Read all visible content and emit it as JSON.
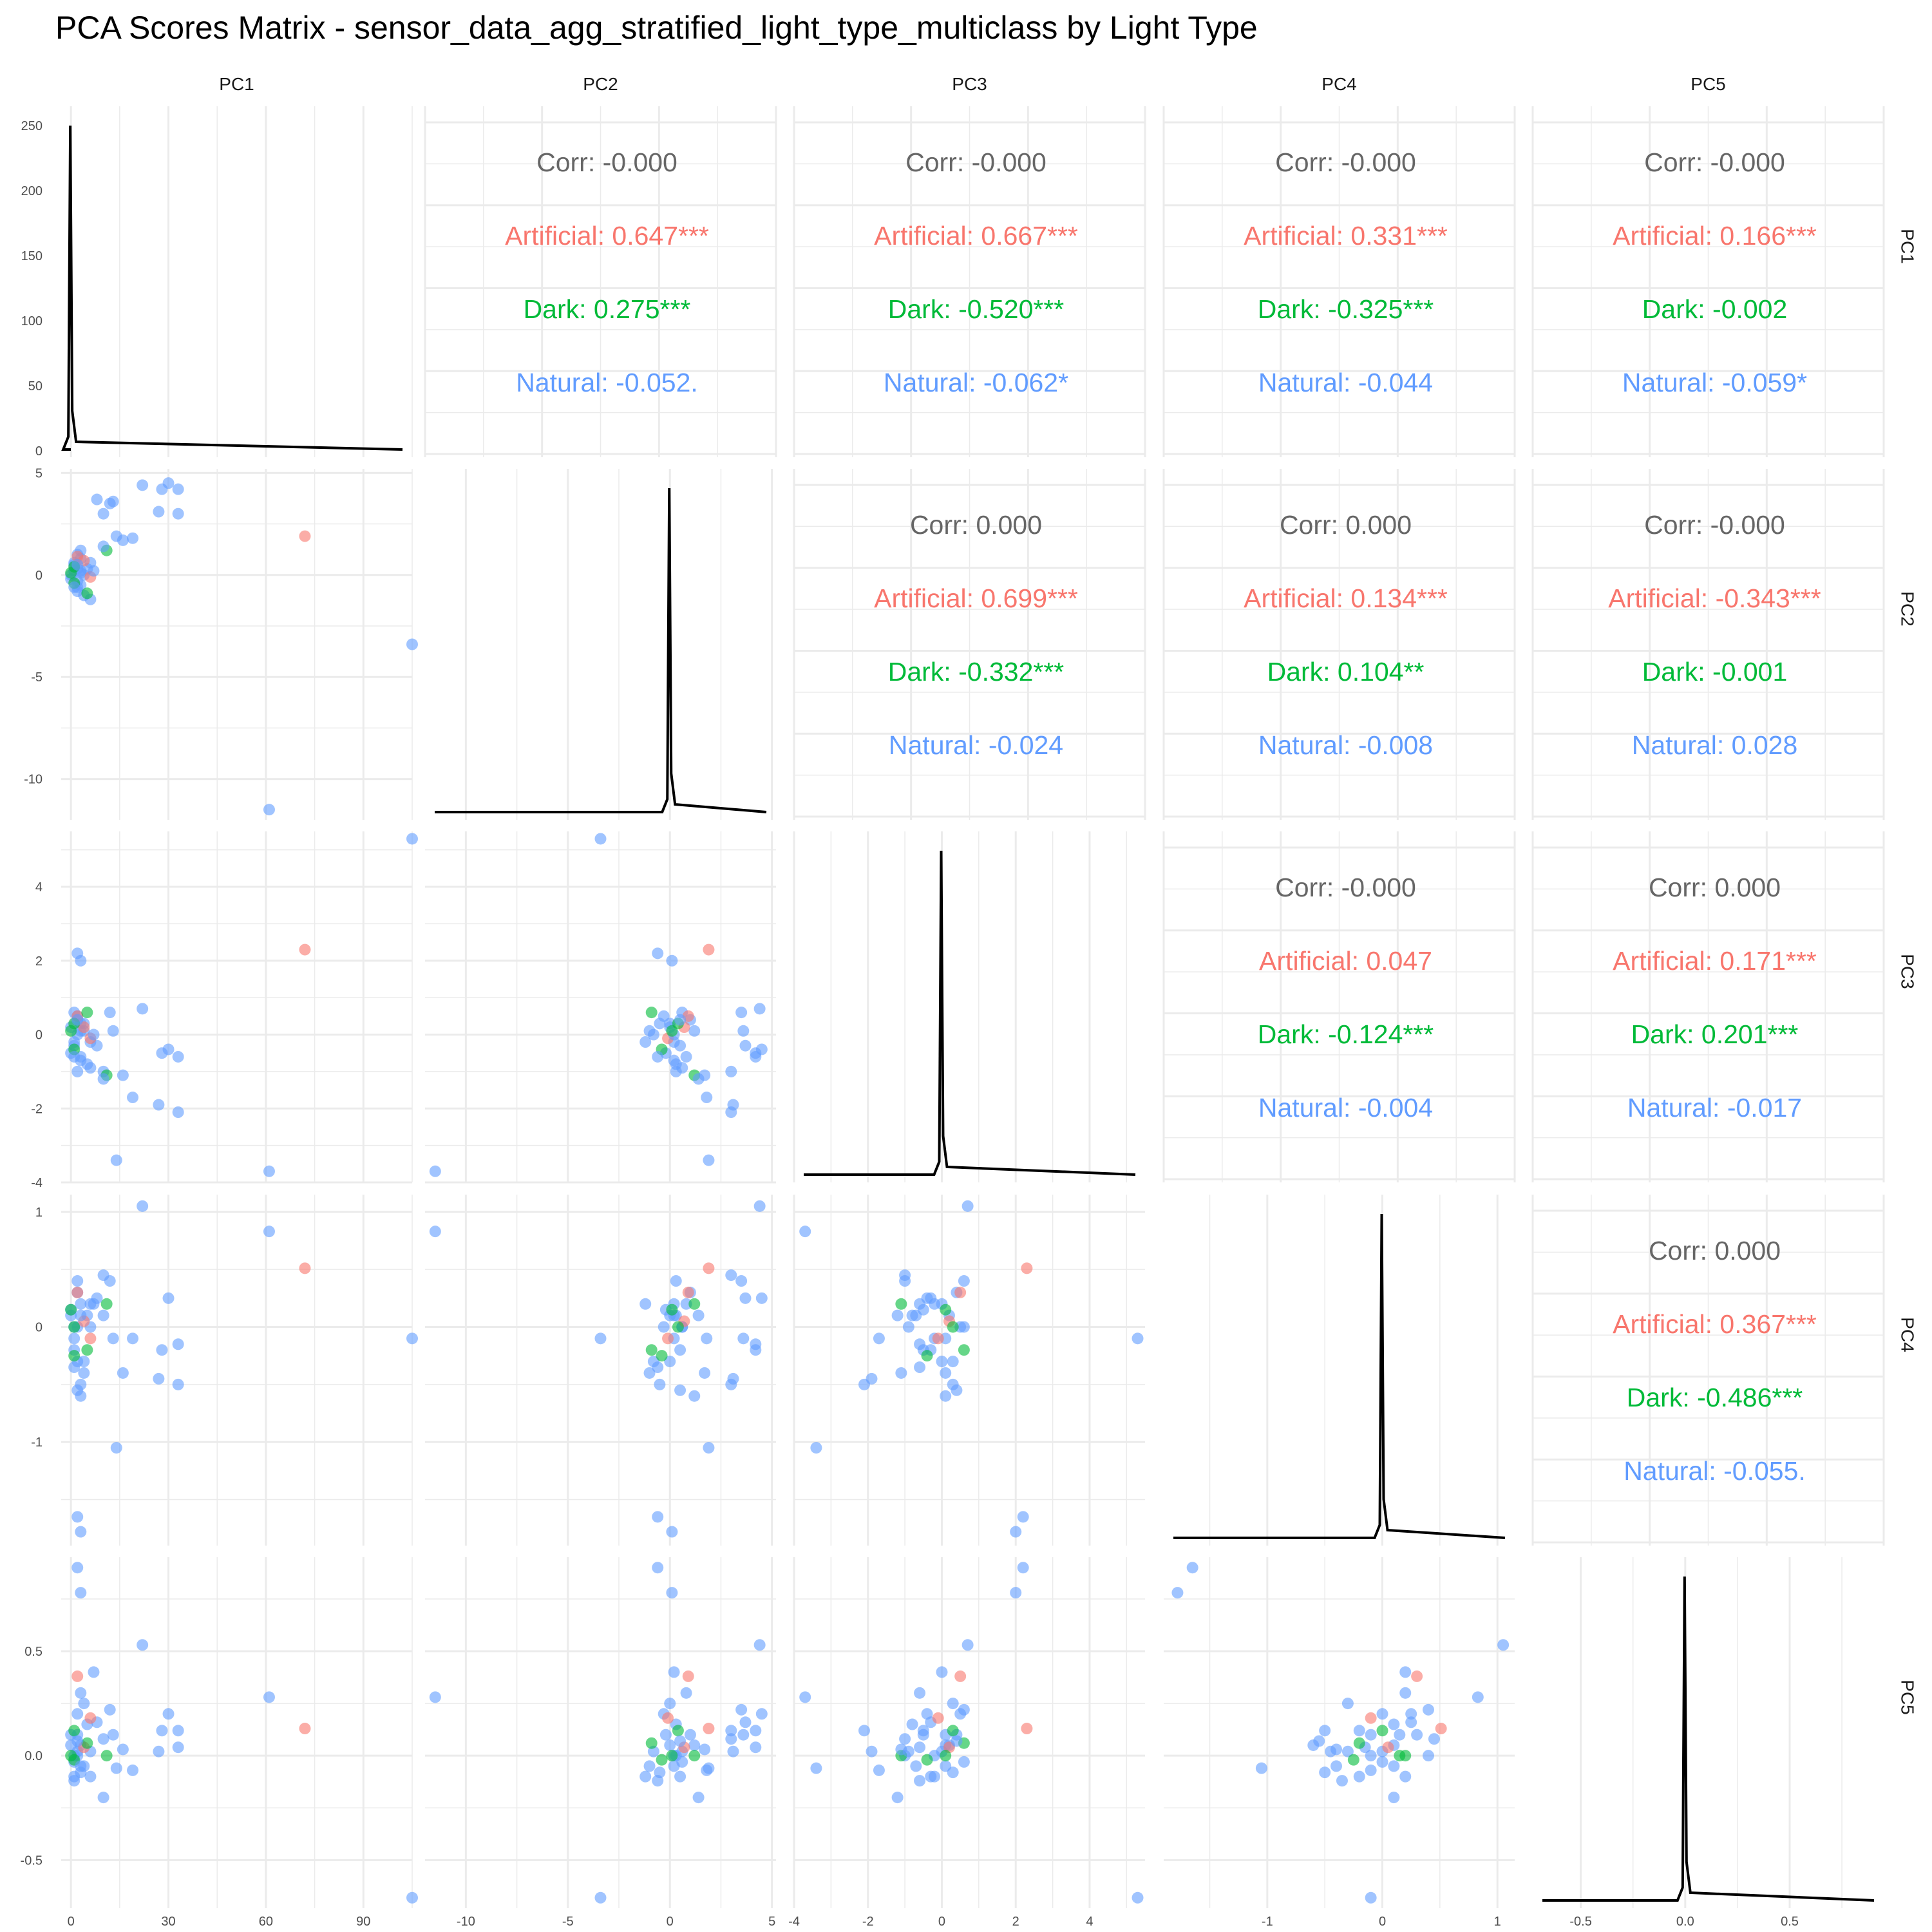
{
  "title": "PCA Scores Matrix - sensor_data_agg_stratified_light_type_multiclass by Light Type",
  "colors": {
    "Artificial": "#F8766D",
    "Dark": "#00BA38",
    "Natural": "#619CFF",
    "corr": "#666666",
    "density": "#000000",
    "grid": "#EBEBEB"
  },
  "chart_data": {
    "type": "scatter",
    "variables": [
      "PC1",
      "PC2",
      "PC3",
      "PC4",
      "PC5"
    ],
    "groups": [
      "Artificial",
      "Dark",
      "Natural"
    ],
    "diagonal": "density",
    "density_ylim": [
      0,
      250
    ],
    "density_yticks": [
      "0",
      "50",
      "100",
      "150",
      "200",
      "250"
    ],
    "axes": {
      "PC1": {
        "lim": [
          -3,
          105
        ],
        "ticks": [
          0,
          30,
          60,
          90
        ],
        "tick_labels": [
          "0",
          "30",
          "60",
          "90"
        ]
      },
      "PC2": {
        "lim": [
          -12,
          5.2
        ],
        "ticks": [
          -10,
          -5,
          0,
          5
        ],
        "tick_labels": [
          "-10",
          "-5",
          "0",
          "5"
        ]
      },
      "PC3": {
        "lim": [
          -4,
          5.5
        ],
        "ticks": [
          -4,
          -2,
          0,
          2,
          4
        ],
        "tick_labels": [
          "-4",
          "-2",
          "0",
          "2",
          "4"
        ]
      },
      "PC4": {
        "lim": [
          -1.9,
          1.15
        ],
        "ticks": [
          -1,
          0,
          1
        ],
        "tick_labels": [
          "-1",
          "0",
          "1"
        ]
      },
      "PC5": {
        "lim": [
          -0.73,
          0.95
        ],
        "ticks": [
          -0.5,
          0,
          0.5
        ],
        "tick_labels": [
          "-0.5",
          "0.0",
          "0.5"
        ]
      }
    },
    "points": {
      "PC1": [
        0,
        1,
        2,
        3,
        4,
        2,
        1,
        3,
        5,
        2,
        1,
        0,
        3,
        6,
        4,
        2,
        8,
        10,
        12,
        13,
        11,
        22,
        30,
        33,
        28,
        27,
        33,
        16,
        19,
        14,
        10,
        6,
        105,
        61,
        72,
        2,
        3,
        4,
        1,
        2,
        5,
        3,
        1,
        6,
        7,
        0,
        1,
        2
      ],
      "PC2": [
        0,
        0.5,
        -0.3,
        0.8,
        -1.0,
        1.0,
        0.2,
        -0.5,
        0.3,
        -0.8,
        0.6,
        -0.2,
        1.2,
        -1.2,
        0.0,
        0.3,
        3.7,
        3.0,
        3.5,
        3.6,
        1.2,
        4.4,
        4.5,
        3.0,
        4.2,
        3.1,
        4.2,
        1.7,
        1.8,
        1.9,
        1.4,
        0.6,
        -3.4,
        -11.5,
        1.9,
        -0.6,
        0.1,
        0.7,
        -0.4,
        0.9,
        -0.9,
        0.2,
        0.4,
        -0.1,
        0.2,
        0.1,
        -0.6,
        0.5
      ],
      "PC3": [
        0.2,
        -0.3,
        0.5,
        -0.6,
        0.1,
        0.4,
        -0.2,
        0.3,
        -0.8,
        0.0,
        0.6,
        -0.5,
        0.1,
        -0.2,
        0.3,
        -1.0,
        -0.3,
        -1.0,
        0.6,
        0.1,
        -1.1,
        0.7,
        -0.4,
        -2.1,
        -0.5,
        -1.9,
        -0.6,
        -1.1,
        -1.7,
        -3.4,
        -1.2,
        -0.9,
        5.3,
        -3.7,
        2.3,
        2.2,
        2.0,
        0.2,
        -0.4,
        0.5,
        0.6,
        -0.7,
        0.3,
        -0.1,
        0.0,
        0.1,
        -0.6,
        0.4
      ],
      "PC4": [
        0.1,
        -0.2,
        0.0,
        0.2,
        -0.4,
        0.3,
        -0.1,
        -0.5,
        0.1,
        -0.3,
        0.0,
        0.15,
        -0.6,
        0.2,
        -0.3,
        0.4,
        0.25,
        0.45,
        0.4,
        -0.1,
        0.2,
        1.05,
        0.25,
        -0.5,
        -0.2,
        -0.45,
        -0.15,
        -0.4,
        -0.1,
        -1.05,
        0.1,
        0.0,
        -0.1,
        0.83,
        0.51,
        -1.65,
        -1.78,
        0.05,
        -0.25,
        0.3,
        -0.2,
        0.1,
        0.0,
        -0.1,
        0.2,
        0.15,
        -0.35,
        -0.55
      ],
      "PC5": [
        0.05,
        -0.1,
        0.2,
        0.3,
        -0.05,
        0.1,
        0.0,
        -0.08,
        0.15,
        0.02,
        -0.03,
        0.1,
        0.05,
        -0.1,
        0.25,
        0.0,
        0.16,
        0.08,
        0.22,
        0.1,
        0.0,
        0.53,
        0.2,
        0.12,
        0.12,
        0.02,
        0.04,
        0.03,
        -0.07,
        -0.06,
        -0.2,
        0.02,
        -0.68,
        0.28,
        0.13,
        0.9,
        0.78,
        0.04,
        -0.02,
        0.38,
        0.06,
        -0.05,
        0.12,
        0.18,
        0.4,
        0.0,
        -0.12,
        0.07
      ],
      "group": [
        "Natural",
        "Natural",
        "Natural",
        "Natural",
        "Natural",
        "Natural",
        "Natural",
        "Natural",
        "Natural",
        "Natural",
        "Natural",
        "Natural",
        "Natural",
        "Natural",
        "Natural",
        "Natural",
        "Natural",
        "Natural",
        "Natural",
        "Natural",
        "Dark",
        "Natural",
        "Natural",
        "Natural",
        "Natural",
        "Natural",
        "Natural",
        "Natural",
        "Natural",
        "Natural",
        "Natural",
        "Natural",
        "Natural",
        "Natural",
        "Artificial",
        "Natural",
        "Natural",
        "Artificial",
        "Dark",
        "Artificial",
        "Dark",
        "Natural",
        "Dark",
        "Artificial",
        "Natural",
        "Dark",
        "Natural",
        "Natural"
      ]
    },
    "correlations": [
      {
        "row": "PC1",
        "col": "PC2",
        "Corr": "Corr: -0.000",
        "Artificial": "Artificial: 0.647***",
        "Dark": "Dark: 0.275***",
        "Natural": "Natural: -0.052."
      },
      {
        "row": "PC1",
        "col": "PC3",
        "Corr": "Corr: -0.000",
        "Artificial": "Artificial: 0.667***",
        "Dark": "Dark: -0.520***",
        "Natural": "Natural: -0.062*"
      },
      {
        "row": "PC1",
        "col": "PC4",
        "Corr": "Corr: -0.000",
        "Artificial": "Artificial: 0.331***",
        "Dark": "Dark: -0.325***",
        "Natural": "Natural: -0.044"
      },
      {
        "row": "PC1",
        "col": "PC5",
        "Corr": "Corr: -0.000",
        "Artificial": "Artificial: 0.166***",
        "Dark": "Dark: -0.002",
        "Natural": "Natural: -0.059*"
      },
      {
        "row": "PC2",
        "col": "PC3",
        "Corr": "Corr: 0.000",
        "Artificial": "Artificial: 0.699***",
        "Dark": "Dark: -0.332***",
        "Natural": "Natural: -0.024"
      },
      {
        "row": "PC2",
        "col": "PC4",
        "Corr": "Corr: 0.000",
        "Artificial": "Artificial: 0.134***",
        "Dark": "Dark: 0.104**",
        "Natural": "Natural: -0.008"
      },
      {
        "row": "PC2",
        "col": "PC5",
        "Corr": "Corr: -0.000",
        "Artificial": "Artificial: -0.343***",
        "Dark": "Dark: -0.001",
        "Natural": "Natural: 0.028"
      },
      {
        "row": "PC3",
        "col": "PC4",
        "Corr": "Corr: -0.000",
        "Artificial": "Artificial: 0.047",
        "Dark": "Dark: -0.124***",
        "Natural": "Natural: -0.004"
      },
      {
        "row": "PC3",
        "col": "PC5",
        "Corr": "Corr: 0.000",
        "Artificial": "Artificial: 0.171***",
        "Dark": "Dark: 0.201***",
        "Natural": "Natural: -0.017"
      },
      {
        "row": "PC4",
        "col": "PC5",
        "Corr": "Corr: 0.000",
        "Artificial": "Artificial: 0.367***",
        "Dark": "Dark: -0.486***",
        "Natural": "Natural: -0.055."
      }
    ]
  }
}
